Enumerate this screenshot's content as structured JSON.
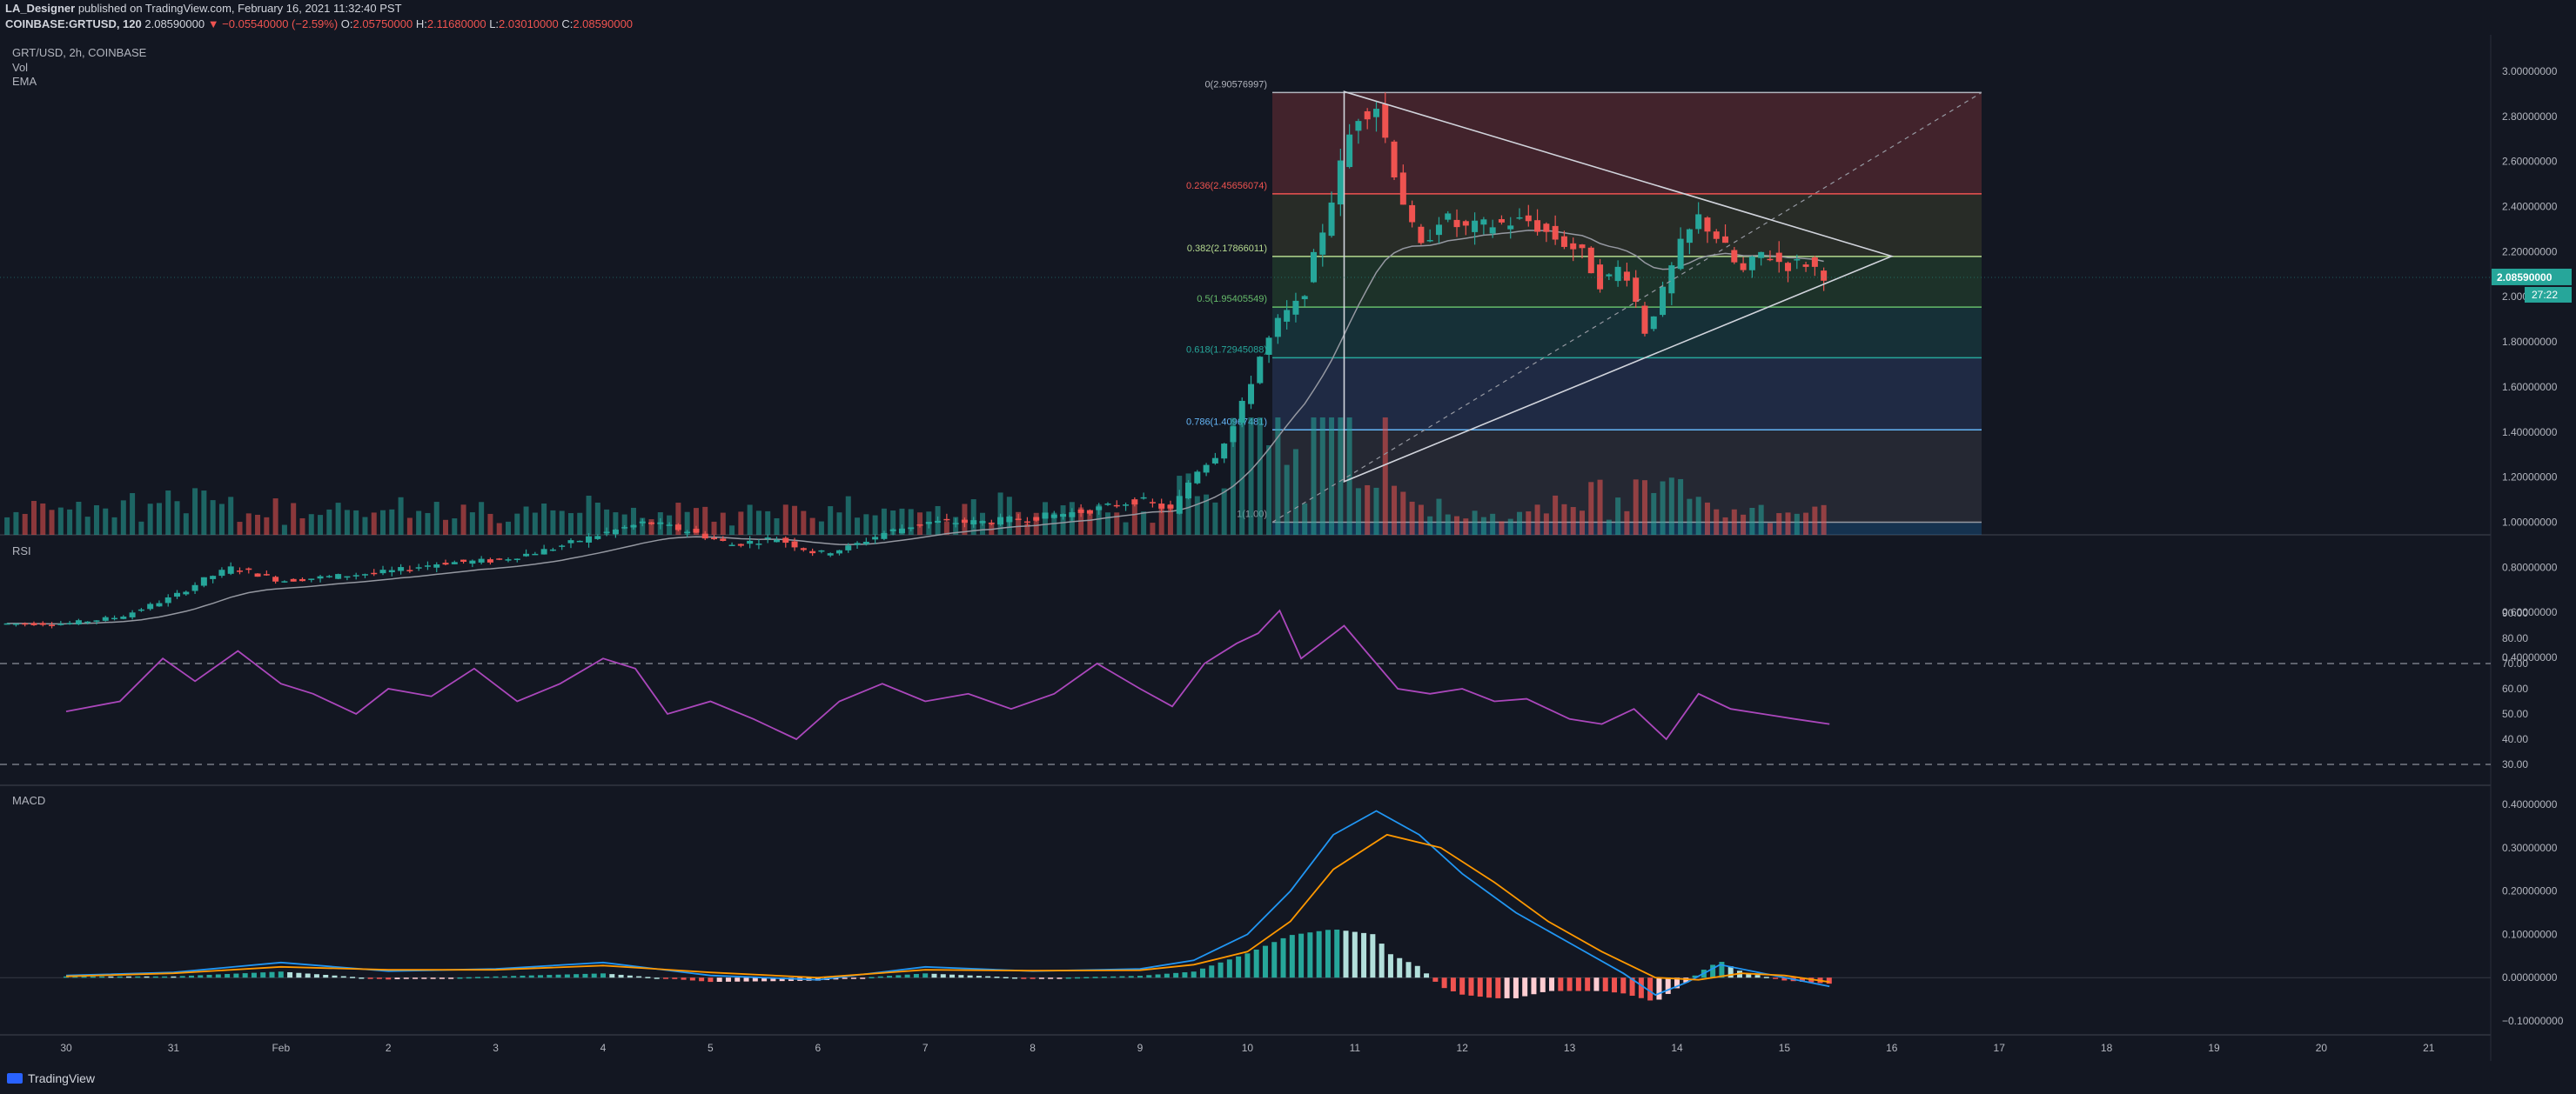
{
  "header": {
    "author": "LA_Designer",
    "published_text": "published on TradingView.com, February 16, 2021 11:32:40 PST",
    "symbol": "COINBASE:GRTUSD, 120",
    "last": "2.08590000",
    "change": "▼ −0.05540000 (−2.59%)",
    "o_label": "O:",
    "o_value": "2.05750000",
    "h_label": "H:",
    "h_value": "2.11680000",
    "l_label": "L:",
    "l_value": "2.03010000",
    "c_label": "C:",
    "c_value": "2.08590000"
  },
  "pane_labels": {
    "symbol": "GRT/USD, 2h, COINBASE",
    "vol": "Vol",
    "ema": "EMA",
    "rsi": "RSI",
    "macd": "MACD"
  },
  "price_badge": {
    "value": "2.08590000",
    "countdown": "27:22"
  },
  "branding": "TradingView",
  "colors": {
    "up": "#26a69a",
    "down": "#ef5350",
    "rsi": "#ab47bc",
    "macd": "#2196f3",
    "signal": "#ff9800",
    "ema": "#9598a1"
  },
  "chart_data": [
    {
      "type": "candlestick",
      "title": "GRT/USD, 2h, COINBASE",
      "x_ticks": [
        "30",
        "31",
        "Feb",
        "2",
        "3",
        "4",
        "5",
        "6",
        "7",
        "8",
        "9",
        "10",
        "11",
        "12",
        "13",
        "14",
        "15",
        "16",
        "17",
        "18",
        "19",
        "20",
        "21"
      ],
      "y_ticks": [
        "3.00000000",
        "2.80000000",
        "2.60000000",
        "2.40000000",
        "2.20000000",
        "2.00000000",
        "1.80000000",
        "1.60000000",
        "1.40000000",
        "1.20000000",
        "1.00000000",
        "0.80000000",
        "0.60000000",
        "0.40000000"
      ],
      "ylim": [
        0.32,
        3.05
      ],
      "close_series": [
        {
          "day": 0.0,
          "v": 0.55
        },
        {
          "day": 0.5,
          "v": 0.58
        },
        {
          "day": 1.0,
          "v": 0.67
        },
        {
          "day": 1.3,
          "v": 0.75
        },
        {
          "day": 1.55,
          "v": 0.8
        },
        {
          "day": 2.0,
          "v": 0.74
        },
        {
          "day": 2.5,
          "v": 0.76
        },
        {
          "day": 3.0,
          "v": 0.78
        },
        {
          "day": 3.5,
          "v": 0.82
        },
        {
          "day": 4.0,
          "v": 0.83
        },
        {
          "day": 4.5,
          "v": 0.88
        },
        {
          "day": 5.0,
          "v": 0.95
        },
        {
          "day": 5.4,
          "v": 1.0
        },
        {
          "day": 5.8,
          "v": 0.96
        },
        {
          "day": 6.2,
          "v": 0.9
        },
        {
          "day": 6.6,
          "v": 0.93
        },
        {
          "day": 7.0,
          "v": 0.86
        },
        {
          "day": 7.3,
          "v": 0.89
        },
        {
          "day": 7.6,
          "v": 0.95
        },
        {
          "day": 8.0,
          "v": 1.0
        },
        {
          "day": 8.5,
          "v": 1.0
        },
        {
          "day": 9.0,
          "v": 1.02
        },
        {
          "day": 9.5,
          "v": 1.05
        },
        {
          "day": 10.0,
          "v": 1.1
        },
        {
          "day": 10.3,
          "v": 1.05
        },
        {
          "day": 10.5,
          "v": 1.22
        },
        {
          "day": 10.7,
          "v": 1.3
        },
        {
          "day": 10.9,
          "v": 1.45
        },
        {
          "day": 11.1,
          "v": 1.72
        },
        {
          "day": 11.3,
          "v": 1.9
        },
        {
          "day": 11.5,
          "v": 1.98
        },
        {
          "day": 11.7,
          "v": 2.3
        },
        {
          "day": 11.85,
          "v": 2.55
        },
        {
          "day": 12.0,
          "v": 2.8
        },
        {
          "day": 12.2,
          "v": 2.85
        },
        {
          "day": 12.4,
          "v": 2.5
        },
        {
          "day": 12.6,
          "v": 2.2
        },
        {
          "day": 12.8,
          "v": 2.36
        },
        {
          "day": 13.0,
          "v": 2.3
        },
        {
          "day": 13.3,
          "v": 2.32
        },
        {
          "day": 13.6,
          "v": 2.34
        },
        {
          "day": 13.9,
          "v": 2.25
        },
        {
          "day": 14.1,
          "v": 2.2
        },
        {
          "day": 14.3,
          "v": 2.05
        },
        {
          "day": 14.5,
          "v": 2.15
        },
        {
          "day": 14.7,
          "v": 1.85
        },
        {
          "day": 14.9,
          "v": 2.05
        },
        {
          "day": 15.0,
          "v": 2.2
        },
        {
          "day": 15.2,
          "v": 2.35
        },
        {
          "day": 15.4,
          "v": 2.25
        },
        {
          "day": 15.6,
          "v": 2.1
        },
        {
          "day": 15.8,
          "v": 2.2
        },
        {
          "day": 16.0,
          "v": 2.14
        },
        {
          "day": 16.2,
          "v": 2.15
        },
        {
          "day": 16.42,
          "v": 2.0859
        }
      ],
      "fib_levels": [
        {
          "label": "0(2.90576997)",
          "v": 2.90576997,
          "color": "#b2b5be",
          "fill": "rgba(239,83,80,0.22)"
        },
        {
          "label": "0.236(2.45656074)",
          "v": 2.45656074,
          "color": "#ef5350",
          "fill": "rgba(120,123,60,0.22)"
        },
        {
          "label": "0.382(2.17866011)",
          "v": 2.17866011,
          "color": "#b5d98f",
          "fill": "rgba(76,175,80,0.18)"
        },
        {
          "label": "0.5(1.95405549)",
          "v": 1.95405549,
          "color": "#66bb6a",
          "fill": "rgba(38,166,154,0.18)"
        },
        {
          "label": "0.618(1.72945088)",
          "v": 1.72945088,
          "color": "#26a69a",
          "fill": "rgba(66,100,170,0.25)"
        },
        {
          "label": "0.786(1.40967481)",
          "v": 1.40967481,
          "color": "#64b5f6",
          "fill": "rgba(120,123,134,0.18)"
        },
        {
          "label": "1(1.00)",
          "v": 1.0,
          "color": "#9598a1",
          "fill": ""
        }
      ],
      "triangle": {
        "apex": [
          17.0,
          2.18
        ],
        "top": [
          11.9,
          2.91
        ],
        "bottom": [
          11.9,
          1.18
        ]
      },
      "last_price": 2.0859
    },
    {
      "type": "line",
      "title": "RSI",
      "y_ticks": [
        "90.00",
        "80.00",
        "70.00",
        "60.00",
        "50.00",
        "40.00",
        "30.00"
      ],
      "ylim": [
        25,
        95
      ],
      "bands": [
        70,
        30
      ],
      "values": [
        {
          "day": 0.0,
          "v": 51
        },
        {
          "day": 0.5,
          "v": 55
        },
        {
          "day": 0.9,
          "v": 72
        },
        {
          "day": 1.2,
          "v": 63
        },
        {
          "day": 1.6,
          "v": 75
        },
        {
          "day": 2.0,
          "v": 62
        },
        {
          "day": 2.3,
          "v": 58
        },
        {
          "day": 2.7,
          "v": 50
        },
        {
          "day": 3.0,
          "v": 60
        },
        {
          "day": 3.4,
          "v": 57
        },
        {
          "day": 3.8,
          "v": 68
        },
        {
          "day": 4.2,
          "v": 55
        },
        {
          "day": 4.6,
          "v": 62
        },
        {
          "day": 5.0,
          "v": 72
        },
        {
          "day": 5.3,
          "v": 68
        },
        {
          "day": 5.6,
          "v": 50
        },
        {
          "day": 6.0,
          "v": 55
        },
        {
          "day": 6.4,
          "v": 48
        },
        {
          "day": 6.8,
          "v": 40
        },
        {
          "day": 7.2,
          "v": 55
        },
        {
          "day": 7.6,
          "v": 62
        },
        {
          "day": 8.0,
          "v": 55
        },
        {
          "day": 8.4,
          "v": 58
        },
        {
          "day": 8.8,
          "v": 52
        },
        {
          "day": 9.2,
          "v": 58
        },
        {
          "day": 9.6,
          "v": 70
        },
        {
          "day": 10.0,
          "v": 60
        },
        {
          "day": 10.3,
          "v": 53
        },
        {
          "day": 10.6,
          "v": 70
        },
        {
          "day": 10.9,
          "v": 78
        },
        {
          "day": 11.1,
          "v": 82
        },
        {
          "day": 11.3,
          "v": 91
        },
        {
          "day": 11.5,
          "v": 72
        },
        {
          "day": 11.9,
          "v": 85
        },
        {
          "day": 12.1,
          "v": 75
        },
        {
          "day": 12.4,
          "v": 60
        },
        {
          "day": 12.7,
          "v": 58
        },
        {
          "day": 13.0,
          "v": 60
        },
        {
          "day": 13.3,
          "v": 55
        },
        {
          "day": 13.6,
          "v": 56
        },
        {
          "day": 14.0,
          "v": 48
        },
        {
          "day": 14.3,
          "v": 46
        },
        {
          "day": 14.6,
          "v": 52
        },
        {
          "day": 14.9,
          "v": 40
        },
        {
          "day": 15.2,
          "v": 58
        },
        {
          "day": 15.5,
          "v": 52
        },
        {
          "day": 15.8,
          "v": 50
        },
        {
          "day": 16.1,
          "v": 48
        },
        {
          "day": 16.42,
          "v": 46
        }
      ]
    },
    {
      "type": "line",
      "title": "MACD",
      "y_ticks": [
        "0.40000000",
        "0.30000000",
        "0.20000000",
        "0.10000000",
        "0.00000000",
        "−0.10000000"
      ],
      "ylim": [
        -0.12,
        0.42
      ],
      "series": [
        {
          "values": [
            {
              "day": 0.0,
              "v": 0.005
            },
            {
              "day": 1.0,
              "v": 0.012
            },
            {
              "day": 2.0,
              "v": 0.035
            },
            {
              "day": 3.0,
              "v": 0.015
            },
            {
              "day": 4.0,
              "v": 0.02
            },
            {
              "day": 5.0,
              "v": 0.035
            },
            {
              "day": 6.0,
              "v": 0.005
            },
            {
              "day": 7.0,
              "v": -0.005
            },
            {
              "day": 8.0,
              "v": 0.025
            },
            {
              "day": 9.0,
              "v": 0.015
            },
            {
              "day": 10.0,
              "v": 0.02
            },
            {
              "day": 10.5,
              "v": 0.04
            },
            {
              "day": 11.0,
              "v": 0.1
            },
            {
              "day": 11.4,
              "v": 0.2
            },
            {
              "day": 11.8,
              "v": 0.33
            },
            {
              "day": 12.2,
              "v": 0.385
            },
            {
              "day": 12.6,
              "v": 0.33
            },
            {
              "day": 13.0,
              "v": 0.24
            },
            {
              "day": 13.5,
              "v": 0.15
            },
            {
              "day": 14.0,
              "v": 0.08
            },
            {
              "day": 14.5,
              "v": 0.01
            },
            {
              "day": 14.8,
              "v": -0.04
            },
            {
              "day": 15.1,
              "v": -0.01
            },
            {
              "day": 15.4,
              "v": 0.03
            },
            {
              "day": 15.8,
              "v": 0.01
            },
            {
              "day": 16.42,
              "v": -0.02
            }
          ]
        },
        {
          "values": [
            {
              "day": 0.0,
              "v": 0.003
            },
            {
              "day": 1.0,
              "v": 0.01
            },
            {
              "day": 2.0,
              "v": 0.025
            },
            {
              "day": 3.0,
              "v": 0.018
            },
            {
              "day": 4.0,
              "v": 0.018
            },
            {
              "day": 5.0,
              "v": 0.028
            },
            {
              "day": 6.0,
              "v": 0.012
            },
            {
              "day": 7.0,
              "v": 0.0
            },
            {
              "day": 8.0,
              "v": 0.018
            },
            {
              "day": 9.0,
              "v": 0.016
            },
            {
              "day": 10.0,
              "v": 0.017
            },
            {
              "day": 10.5,
              "v": 0.03
            },
            {
              "day": 11.0,
              "v": 0.06
            },
            {
              "day": 11.4,
              "v": 0.13
            },
            {
              "day": 11.8,
              "v": 0.25
            },
            {
              "day": 12.3,
              "v": 0.33
            },
            {
              "day": 12.8,
              "v": 0.3
            },
            {
              "day": 13.3,
              "v": 0.22
            },
            {
              "day": 13.8,
              "v": 0.13
            },
            {
              "day": 14.3,
              "v": 0.06
            },
            {
              "day": 14.8,
              "v": 0.0
            },
            {
              "day": 15.2,
              "v": -0.005
            },
            {
              "day": 15.6,
              "v": 0.01
            },
            {
              "day": 16.0,
              "v": 0.005
            },
            {
              "day": 16.42,
              "v": -0.01
            }
          ]
        }
      ]
    }
  ]
}
